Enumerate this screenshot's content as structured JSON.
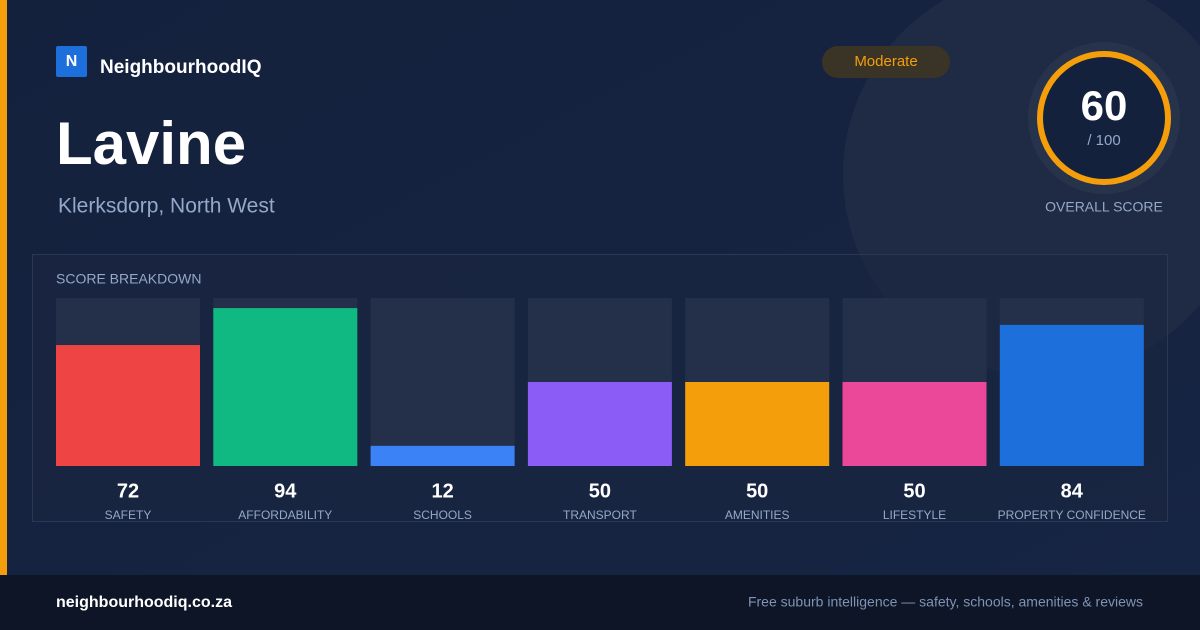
{
  "brand": {
    "logo": "N",
    "name": "NeighbourhoodIQ"
  },
  "badge": "Moderate",
  "suburb": "Lavine",
  "location": "Klerksdorp, North West",
  "overall": {
    "score": 60,
    "max": 100,
    "max_label": "/ 100",
    "label": "OVERALL SCORE"
  },
  "breakdown": {
    "title": "SCORE BREAKDOWN",
    "items": [
      {
        "label": "SAFETY",
        "value": 72,
        "color": "#ef4444"
      },
      {
        "label": "AFFORDABILITY",
        "value": 94,
        "color": "#10b981"
      },
      {
        "label": "SCHOOLS",
        "value": 12,
        "color": "#3b82f6"
      },
      {
        "label": "TRANSPORT",
        "value": 50,
        "color": "#8b5cf6"
      },
      {
        "label": "AMENITIES",
        "value": 50,
        "color": "#f59e0b"
      },
      {
        "label": "LIFESTYLE",
        "value": 50,
        "color": "#ec4899"
      },
      {
        "label": "PROPERTY CONFIDENCE",
        "value": 84,
        "color": "#1d6fdc"
      }
    ]
  },
  "footer": {
    "url": "neighbourhoodiq.co.za",
    "tagline": "Free suburb intelligence — safety, schools, amenities & reviews"
  }
}
